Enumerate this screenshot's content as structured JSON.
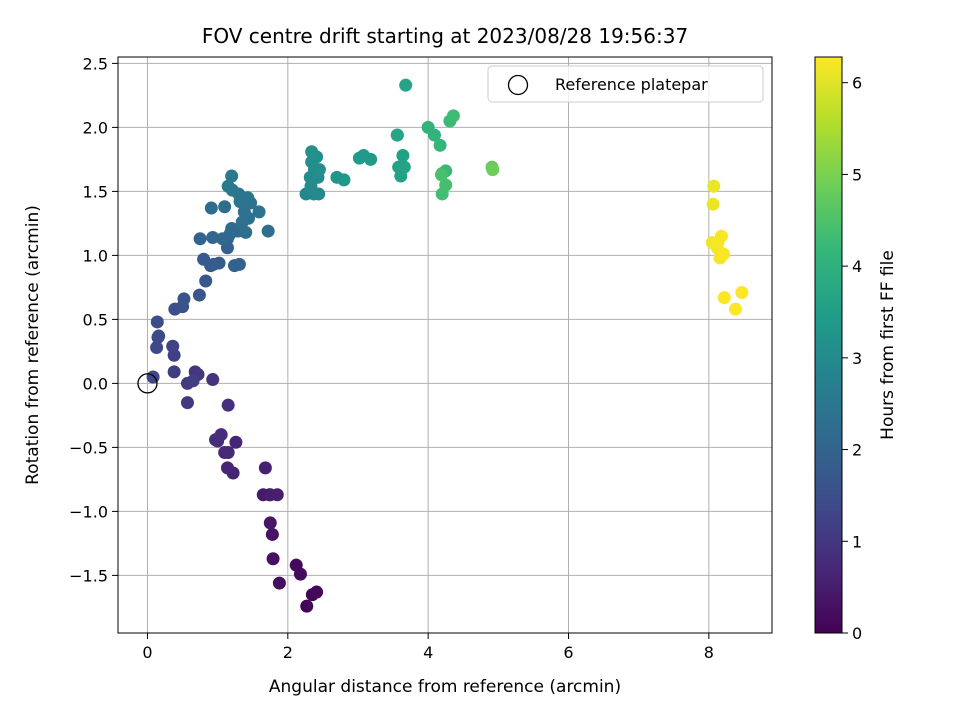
{
  "chart_data": {
    "type": "scatter",
    "title": "FOV centre drift starting at 2023/08/28 19:56:37",
    "xlabel": "Angular distance from reference (arcmin)",
    "ylabel": "Rotation from reference (arcmin)",
    "xlim": [
      -0.42,
      8.9
    ],
    "ylim": [
      -1.95,
      2.55
    ],
    "xticks": [
      0,
      2,
      4,
      6,
      8
    ],
    "yticks": [
      -1.5,
      -1.0,
      -0.5,
      0.0,
      0.5,
      1.0,
      1.5,
      2.0,
      2.5
    ],
    "xtick_labels": [
      "0",
      "2",
      "4",
      "6",
      "8"
    ],
    "ytick_labels": [
      "−1.5",
      "−1.0",
      "−0.5",
      "0.0",
      "0.5",
      "1.0",
      "1.5",
      "2.0",
      "2.5"
    ],
    "grid": true,
    "legend": {
      "position": "top-right",
      "entries": [
        "Reference platepar"
      ]
    },
    "reference_point": {
      "name": "Reference platepar",
      "x": 0,
      "y": 0
    },
    "colorbar": {
      "label": "Hours from first FF file",
      "colormap": "viridis",
      "min": 0,
      "max": 6.28,
      "ticks": [
        0,
        1,
        2,
        3,
        4,
        5,
        6
      ],
      "tick_labels": [
        "0",
        "1",
        "2",
        "3",
        "4",
        "5",
        "6"
      ]
    },
    "series": [
      {
        "name": "FOV centre drift",
        "x": [
          2.27,
          2.35,
          2.41,
          2.12,
          2.18,
          1.88,
          1.79,
          1.78,
          1.75,
          1.74,
          1.65,
          1.75,
          1.85,
          1.68,
          1.22,
          1.14,
          1.26,
          1.15,
          1.1,
          1.0,
          1.05,
          0.97,
          1.15,
          0.93,
          0.68,
          0.72,
          0.57,
          0.57,
          0.38,
          0.65,
          0.38,
          0.36,
          0.15,
          0.08,
          0.13,
          0.16,
          0.14,
          0.39,
          0.5,
          0.52,
          0.74,
          0.83,
          0.9,
          0.8,
          1.02,
          0.94,
          1.14,
          1.24,
          1.31,
          1.14,
          1.07,
          1.18,
          1.29,
          0.75,
          0.93,
          1.2,
          0.91,
          1.1,
          1.72,
          1.4,
          1.35,
          1.44,
          1.38,
          1.59,
          1.47,
          1.43,
          1.32,
          1.3,
          1.21,
          1.15,
          1.2,
          2.26,
          2.37,
          2.44,
          2.33,
          2.43,
          2.32,
          2.38,
          2.45,
          2.34,
          2.41,
          2.34,
          2.7,
          2.8,
          3.02,
          3.08,
          3.18,
          3.56,
          3.64,
          3.58,
          3.61,
          3.66,
          3.68,
          3.56,
          4.0,
          4.09,
          4.17,
          4.2,
          4.25,
          4.31,
          4.36,
          4.2,
          4.25,
          4.19,
          4.91,
          4.92,
          8.07,
          8.06,
          8.05,
          8.12,
          8.16,
          8.13,
          8.18,
          8.21,
          8.22,
          8.38,
          8.47
        ],
        "y": [
          -1.74,
          -1.65,
          -1.63,
          -1.42,
          -1.49,
          -1.56,
          -1.37,
          -1.18,
          -1.09,
          -0.87,
          -0.87,
          -0.87,
          -0.87,
          -0.66,
          -0.7,
          -0.66,
          -0.46,
          -0.54,
          -0.54,
          -0.45,
          -0.4,
          -0.44,
          -0.17,
          0.03,
          0.09,
          0.07,
          -0.15,
          0.0,
          0.09,
          0.02,
          0.22,
          0.29,
          0.36,
          0.05,
          0.28,
          0.37,
          0.48,
          0.58,
          0.6,
          0.66,
          0.69,
          0.8,
          0.92,
          0.97,
          0.94,
          0.93,
          1.06,
          0.92,
          0.93,
          1.13,
          1.13,
          1.17,
          1.19,
          1.13,
          1.14,
          1.21,
          1.37,
          1.38,
          1.19,
          1.18,
          1.26,
          1.29,
          1.34,
          1.34,
          1.41,
          1.45,
          1.42,
          1.48,
          1.51,
          1.54,
          1.62,
          1.48,
          1.48,
          1.48,
          1.54,
          1.61,
          1.61,
          1.67,
          1.67,
          1.73,
          1.77,
          1.81,
          1.61,
          1.59,
          1.76,
          1.78,
          1.75,
          1.94,
          1.78,
          1.69,
          1.62,
          1.69,
          2.33,
          1.94,
          2.0,
          1.94,
          1.86,
          1.64,
          1.66,
          2.05,
          2.09,
          1.48,
          1.55,
          1.63,
          1.69,
          1.67,
          1.54,
          1.4,
          1.1,
          1.06,
          0.98,
          1.1,
          1.15,
          1.01,
          0.67,
          0.58,
          0.71
        ],
        "hours": [
          0.05,
          0.08,
          0.12,
          0.16,
          0.2,
          0.24,
          0.29,
          0.33,
          0.37,
          0.42,
          0.46,
          0.5,
          0.53,
          0.56,
          0.6,
          0.64,
          0.67,
          0.7,
          0.73,
          0.76,
          0.8,
          0.83,
          0.86,
          0.92,
          0.96,
          1.0,
          1.04,
          1.08,
          1.12,
          1.16,
          1.2,
          1.24,
          1.3,
          1.34,
          1.38,
          1.42,
          1.46,
          1.52,
          1.56,
          1.6,
          1.66,
          1.7,
          1.74,
          1.78,
          1.82,
          1.86,
          1.9,
          1.94,
          1.98,
          2.02,
          2.06,
          2.1,
          2.14,
          2.0,
          2.04,
          2.18,
          2.22,
          2.24,
          2.26,
          2.28,
          2.3,
          2.33,
          2.36,
          2.4,
          2.42,
          2.44,
          2.46,
          2.48,
          2.5,
          2.52,
          2.55,
          2.9,
          2.95,
          3.0,
          2.98,
          3.02,
          3.04,
          3.06,
          3.08,
          3.1,
          3.12,
          3.14,
          3.3,
          3.34,
          3.38,
          3.4,
          3.42,
          3.55,
          3.58,
          3.6,
          3.62,
          3.64,
          3.66,
          3.68,
          4.05,
          4.08,
          4.12,
          4.18,
          4.22,
          4.26,
          4.3,
          4.36,
          4.4,
          4.44,
          4.8,
          4.85,
          6.1,
          6.12,
          6.14,
          6.16,
          6.18,
          6.2,
          6.22,
          6.24,
          6.25,
          6.26,
          6.27
        ]
      }
    ]
  }
}
